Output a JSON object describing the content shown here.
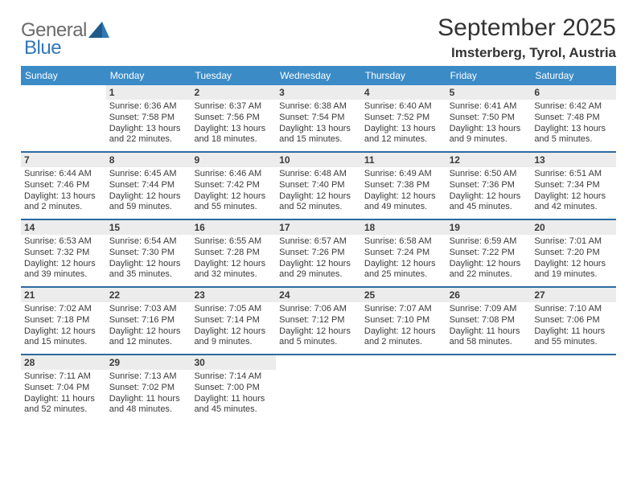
{
  "logo": {
    "general": "General",
    "blue": "Blue",
    "triangle_color": "#2f78b7"
  },
  "title": "September 2025",
  "location": "Imsterberg, Tyrol, Austria",
  "colors": {
    "header_bg": "#3b8bc7",
    "divider": "#2d6aa0",
    "shade_bg": "#ececec",
    "text": "#333333"
  },
  "days_of_week": [
    "Sunday",
    "Monday",
    "Tuesday",
    "Wednesday",
    "Thursday",
    "Friday",
    "Saturday"
  ],
  "weeks": [
    [
      {
        "n": "",
        "sunrise": "",
        "sunset": "",
        "day": "",
        "empty": true
      },
      {
        "n": "1",
        "sunrise": "Sunrise: 6:36 AM",
        "sunset": "Sunset: 7:58 PM",
        "day": "Daylight: 13 hours and 22 minutes."
      },
      {
        "n": "2",
        "sunrise": "Sunrise: 6:37 AM",
        "sunset": "Sunset: 7:56 PM",
        "day": "Daylight: 13 hours and 18 minutes."
      },
      {
        "n": "3",
        "sunrise": "Sunrise: 6:38 AM",
        "sunset": "Sunset: 7:54 PM",
        "day": "Daylight: 13 hours and 15 minutes."
      },
      {
        "n": "4",
        "sunrise": "Sunrise: 6:40 AM",
        "sunset": "Sunset: 7:52 PM",
        "day": "Daylight: 13 hours and 12 minutes."
      },
      {
        "n": "5",
        "sunrise": "Sunrise: 6:41 AM",
        "sunset": "Sunset: 7:50 PM",
        "day": "Daylight: 13 hours and 9 minutes."
      },
      {
        "n": "6",
        "sunrise": "Sunrise: 6:42 AM",
        "sunset": "Sunset: 7:48 PM",
        "day": "Daylight: 13 hours and 5 minutes."
      }
    ],
    [
      {
        "n": "7",
        "sunrise": "Sunrise: 6:44 AM",
        "sunset": "Sunset: 7:46 PM",
        "day": "Daylight: 13 hours and 2 minutes."
      },
      {
        "n": "8",
        "sunrise": "Sunrise: 6:45 AM",
        "sunset": "Sunset: 7:44 PM",
        "day": "Daylight: 12 hours and 59 minutes."
      },
      {
        "n": "9",
        "sunrise": "Sunrise: 6:46 AM",
        "sunset": "Sunset: 7:42 PM",
        "day": "Daylight: 12 hours and 55 minutes."
      },
      {
        "n": "10",
        "sunrise": "Sunrise: 6:48 AM",
        "sunset": "Sunset: 7:40 PM",
        "day": "Daylight: 12 hours and 52 minutes."
      },
      {
        "n": "11",
        "sunrise": "Sunrise: 6:49 AM",
        "sunset": "Sunset: 7:38 PM",
        "day": "Daylight: 12 hours and 49 minutes."
      },
      {
        "n": "12",
        "sunrise": "Sunrise: 6:50 AM",
        "sunset": "Sunset: 7:36 PM",
        "day": "Daylight: 12 hours and 45 minutes."
      },
      {
        "n": "13",
        "sunrise": "Sunrise: 6:51 AM",
        "sunset": "Sunset: 7:34 PM",
        "day": "Daylight: 12 hours and 42 minutes."
      }
    ],
    [
      {
        "n": "14",
        "sunrise": "Sunrise: 6:53 AM",
        "sunset": "Sunset: 7:32 PM",
        "day": "Daylight: 12 hours and 39 minutes."
      },
      {
        "n": "15",
        "sunrise": "Sunrise: 6:54 AM",
        "sunset": "Sunset: 7:30 PM",
        "day": "Daylight: 12 hours and 35 minutes."
      },
      {
        "n": "16",
        "sunrise": "Sunrise: 6:55 AM",
        "sunset": "Sunset: 7:28 PM",
        "day": "Daylight: 12 hours and 32 minutes."
      },
      {
        "n": "17",
        "sunrise": "Sunrise: 6:57 AM",
        "sunset": "Sunset: 7:26 PM",
        "day": "Daylight: 12 hours and 29 minutes."
      },
      {
        "n": "18",
        "sunrise": "Sunrise: 6:58 AM",
        "sunset": "Sunset: 7:24 PM",
        "day": "Daylight: 12 hours and 25 minutes."
      },
      {
        "n": "19",
        "sunrise": "Sunrise: 6:59 AM",
        "sunset": "Sunset: 7:22 PM",
        "day": "Daylight: 12 hours and 22 minutes."
      },
      {
        "n": "20",
        "sunrise": "Sunrise: 7:01 AM",
        "sunset": "Sunset: 7:20 PM",
        "day": "Daylight: 12 hours and 19 minutes."
      }
    ],
    [
      {
        "n": "21",
        "sunrise": "Sunrise: 7:02 AM",
        "sunset": "Sunset: 7:18 PM",
        "day": "Daylight: 12 hours and 15 minutes."
      },
      {
        "n": "22",
        "sunrise": "Sunrise: 7:03 AM",
        "sunset": "Sunset: 7:16 PM",
        "day": "Daylight: 12 hours and 12 minutes."
      },
      {
        "n": "23",
        "sunrise": "Sunrise: 7:05 AM",
        "sunset": "Sunset: 7:14 PM",
        "day": "Daylight: 12 hours and 9 minutes."
      },
      {
        "n": "24",
        "sunrise": "Sunrise: 7:06 AM",
        "sunset": "Sunset: 7:12 PM",
        "day": "Daylight: 12 hours and 5 minutes."
      },
      {
        "n": "25",
        "sunrise": "Sunrise: 7:07 AM",
        "sunset": "Sunset: 7:10 PM",
        "day": "Daylight: 12 hours and 2 minutes."
      },
      {
        "n": "26",
        "sunrise": "Sunrise: 7:09 AM",
        "sunset": "Sunset: 7:08 PM",
        "day": "Daylight: 11 hours and 58 minutes."
      },
      {
        "n": "27",
        "sunrise": "Sunrise: 7:10 AM",
        "sunset": "Sunset: 7:06 PM",
        "day": "Daylight: 11 hours and 55 minutes."
      }
    ],
    [
      {
        "n": "28",
        "sunrise": "Sunrise: 7:11 AM",
        "sunset": "Sunset: 7:04 PM",
        "day": "Daylight: 11 hours and 52 minutes."
      },
      {
        "n": "29",
        "sunrise": "Sunrise: 7:13 AM",
        "sunset": "Sunset: 7:02 PM",
        "day": "Daylight: 11 hours and 48 minutes."
      },
      {
        "n": "30",
        "sunrise": "Sunrise: 7:14 AM",
        "sunset": "Sunset: 7:00 PM",
        "day": "Daylight: 11 hours and 45 minutes."
      },
      {
        "n": "",
        "sunrise": "",
        "sunset": "",
        "day": "",
        "empty": true
      },
      {
        "n": "",
        "sunrise": "",
        "sunset": "",
        "day": "",
        "empty": true
      },
      {
        "n": "",
        "sunrise": "",
        "sunset": "",
        "day": "",
        "empty": true
      },
      {
        "n": "",
        "sunrise": "",
        "sunset": "",
        "day": "",
        "empty": true
      }
    ]
  ]
}
